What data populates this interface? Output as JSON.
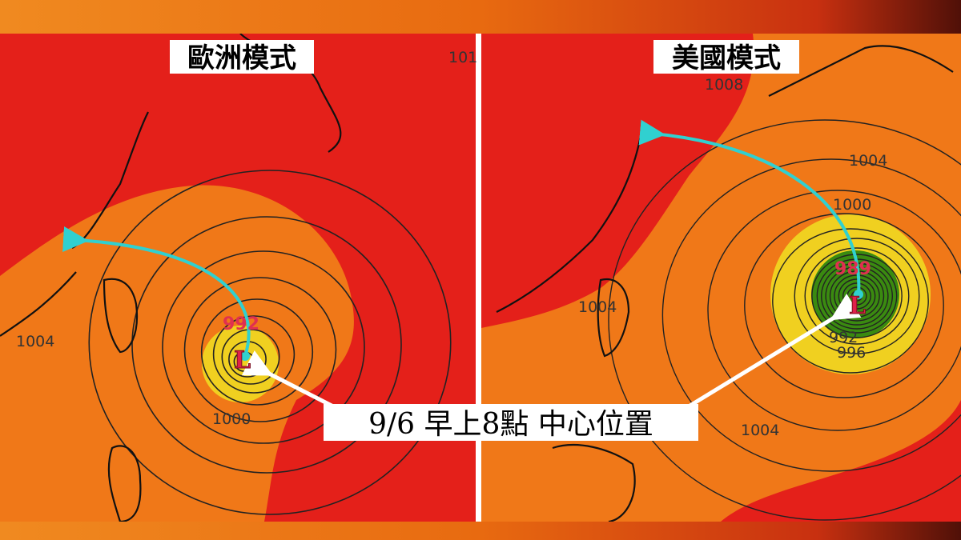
{
  "panels": [
    {
      "title": "歐洲模式",
      "center_pressure": "992",
      "low_symbol": "L",
      "isobar_labels": [
        "1004",
        "1000",
        "101"
      ]
    },
    {
      "title": "美國模式",
      "center_pressure": "989",
      "low_symbol": "L",
      "isobar_labels": [
        "1008",
        "1004",
        "1000",
        "1004",
        "992",
        "996",
        "1004"
      ]
    }
  ],
  "caption": "9/6 早上8點 中心位置"
}
